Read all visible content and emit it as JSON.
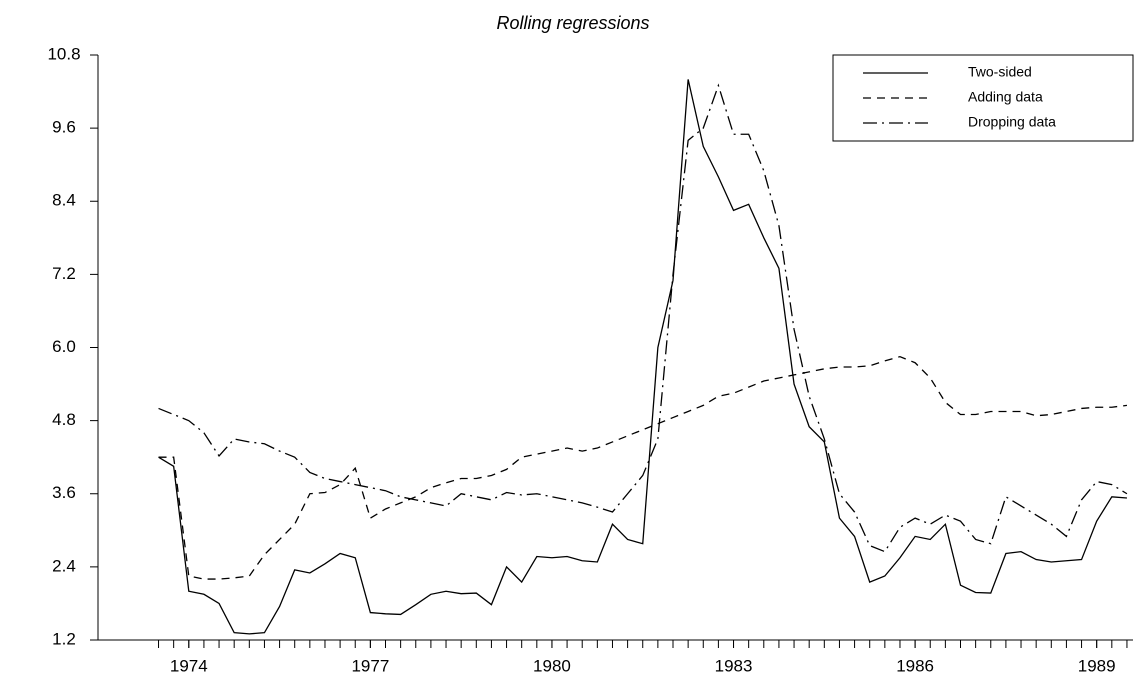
{
  "chart_data": {
    "type": "line",
    "title": "Rolling regressions",
    "x": [
      1973.5,
      1973.75,
      1974,
      1974.25,
      1974.5,
      1974.75,
      1975,
      1975.25,
      1975.5,
      1975.75,
      1976,
      1976.25,
      1976.5,
      1976.75,
      1977,
      1977.25,
      1977.5,
      1977.75,
      1978,
      1978.25,
      1978.5,
      1978.75,
      1979,
      1979.25,
      1979.5,
      1979.75,
      1980,
      1980.25,
      1980.5,
      1980.75,
      1981,
      1981.25,
      1981.5,
      1981.75,
      1982,
      1982.25,
      1982.5,
      1982.75,
      1983,
      1983.25,
      1983.5,
      1983.75,
      1984,
      1984.25,
      1984.5,
      1984.75,
      1985,
      1985.25,
      1985.5,
      1985.75,
      1986,
      1986.25,
      1986.5,
      1986.75,
      1987,
      1987.25,
      1987.5,
      1987.75,
      1988,
      1988.25,
      1988.5,
      1988.75,
      1989,
      1989.25,
      1989.5
    ],
    "series": [
      {
        "name": "Two-sided",
        "color": "#000000",
        "dash": "solid",
        "values": [
          4.2,
          4.05,
          2.0,
          1.95,
          1.8,
          1.32,
          1.3,
          1.32,
          1.75,
          2.35,
          2.3,
          2.45,
          2.62,
          2.55,
          1.65,
          1.63,
          1.62,
          1.78,
          1.95,
          2.0,
          1.96,
          1.97,
          1.78,
          2.4,
          2.15,
          2.57,
          2.55,
          2.57,
          2.5,
          2.48,
          3.1,
          2.85,
          2.78,
          6.0,
          7.1,
          10.4,
          9.3,
          8.8,
          8.25,
          8.35,
          7.8,
          7.3,
          5.4,
          4.7,
          4.45,
          3.2,
          2.9,
          2.15,
          2.25,
          2.55,
          2.9,
          2.85,
          3.1,
          2.1,
          1.98,
          1.97,
          2.62,
          2.65,
          2.52,
          2.48,
          2.5,
          2.52,
          3.15,
          3.55,
          3.53
        ]
      },
      {
        "name": "Adding data",
        "color": "#000000",
        "dash": "dashed",
        "values": [
          4.2,
          4.2,
          2.25,
          2.2,
          2.2,
          2.22,
          2.25,
          2.6,
          2.85,
          3.1,
          3.6,
          3.62,
          3.75,
          4.02,
          3.2,
          3.35,
          3.45,
          3.55,
          3.7,
          3.78,
          3.85,
          3.85,
          3.9,
          4.0,
          4.2,
          4.25,
          4.3,
          4.35,
          4.3,
          4.35,
          4.45,
          4.55,
          4.65,
          4.75,
          4.85,
          4.95,
          5.05,
          5.2,
          5.25,
          5.35,
          5.45,
          5.5,
          5.55,
          5.6,
          5.65,
          5.68,
          5.68,
          5.7,
          5.78,
          5.85,
          5.75,
          5.5,
          5.1,
          4.9,
          4.9,
          4.95,
          4.95,
          4.95,
          4.88,
          4.9,
          4.95,
          5.0,
          5.02,
          5.02,
          5.05
        ]
      },
      {
        "name": "Dropping data",
        "color": "#000000",
        "dash": "dashdot",
        "values": [
          5.0,
          4.9,
          4.8,
          4.6,
          4.22,
          4.5,
          4.45,
          4.42,
          4.3,
          4.2,
          3.95,
          3.85,
          3.8,
          3.75,
          3.7,
          3.65,
          3.55,
          3.5,
          3.45,
          3.4,
          3.6,
          3.55,
          3.5,
          3.62,
          3.58,
          3.6,
          3.55,
          3.5,
          3.45,
          3.38,
          3.3,
          3.6,
          3.9,
          4.5,
          7.2,
          9.4,
          9.6,
          10.3,
          9.5,
          9.5,
          8.9,
          8.0,
          6.3,
          5.2,
          4.5,
          3.6,
          3.3,
          2.75,
          2.65,
          3.05,
          3.2,
          3.1,
          3.25,
          3.15,
          2.85,
          2.78,
          3.55,
          3.4,
          3.25,
          3.1,
          2.9,
          3.5,
          3.8,
          3.75,
          3.6
        ]
      }
    ],
    "xlim": [
      1972.5,
      1989.6
    ],
    "xticks": [
      1974,
      1977,
      1980,
      1983,
      1986,
      1989
    ],
    "ylim": [
      1.2,
      10.8
    ],
    "yticks": [
      1.2,
      2.4,
      3.6,
      {
        "value": 4.8,
        "label": "4.8"
      },
      {
        "value": 6,
        "label": "6.0"
      },
      7.2,
      8.4,
      9.6,
      10.8
    ],
    "grid": false,
    "legend": "upper right"
  }
}
